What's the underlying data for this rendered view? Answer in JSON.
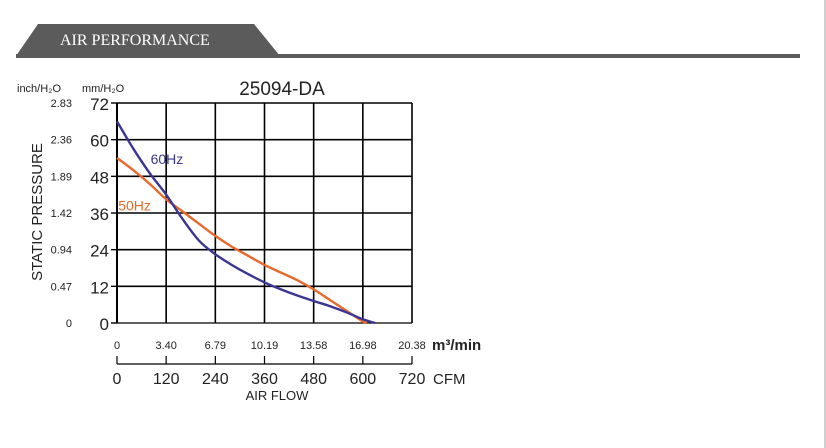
{
  "section": {
    "title": "AIR PERFORMANCE"
  },
  "chart_data": {
    "type": "line",
    "title": "25094-DA",
    "ylabel": "STATIC PRESSURE",
    "xlabel": "AIR FLOW",
    "left_axis_unit": "inch/H₂O",
    "right_axis_unit": "mm/H₂O",
    "x_unit_top": "m³/min",
    "x_unit_bottom": "CFM",
    "y_ticks_inch": [
      "0",
      "0.47",
      "0.94",
      "1.42",
      "1.89",
      "2.36",
      "2.83"
    ],
    "y_ticks_mm": [
      "0",
      "12",
      "24",
      "36",
      "48",
      "60",
      "72"
    ],
    "x_ticks_m3min": [
      "0",
      "3.40",
      "6.79",
      "10.19",
      "13.58",
      "16.98",
      "20.38"
    ],
    "x_ticks_cfm": [
      "0",
      "120",
      "240",
      "360",
      "480",
      "600",
      "720"
    ],
    "xlim": [
      0,
      720
    ],
    "ylim": [
      0,
      72
    ],
    "grid": true,
    "series": [
      {
        "name": "60Hz",
        "color": "#3a3592",
        "x": [
          0,
          40,
          80,
          120,
          160,
          200,
          240,
          280,
          320,
          360,
          400,
          440,
          480,
          520,
          560,
          600,
          630
        ],
        "y": [
          66,
          57,
          49,
          42,
          34,
          27,
          22.5,
          19,
          16,
          13.3,
          11,
          9,
          7.2,
          5.5,
          3.5,
          1.2,
          0
        ]
      },
      {
        "name": "50Hz",
        "color": "#e8692a",
        "x": [
          0,
          40,
          80,
          120,
          160,
          200,
          240,
          280,
          320,
          360,
          400,
          440,
          480,
          520,
          560,
          600,
          610
        ],
        "y": [
          54,
          50,
          45.5,
          40.5,
          36.5,
          32.5,
          28.5,
          25,
          22,
          19,
          16.5,
          14,
          11,
          7.5,
          4,
          0.5,
          0
        ]
      }
    ]
  }
}
